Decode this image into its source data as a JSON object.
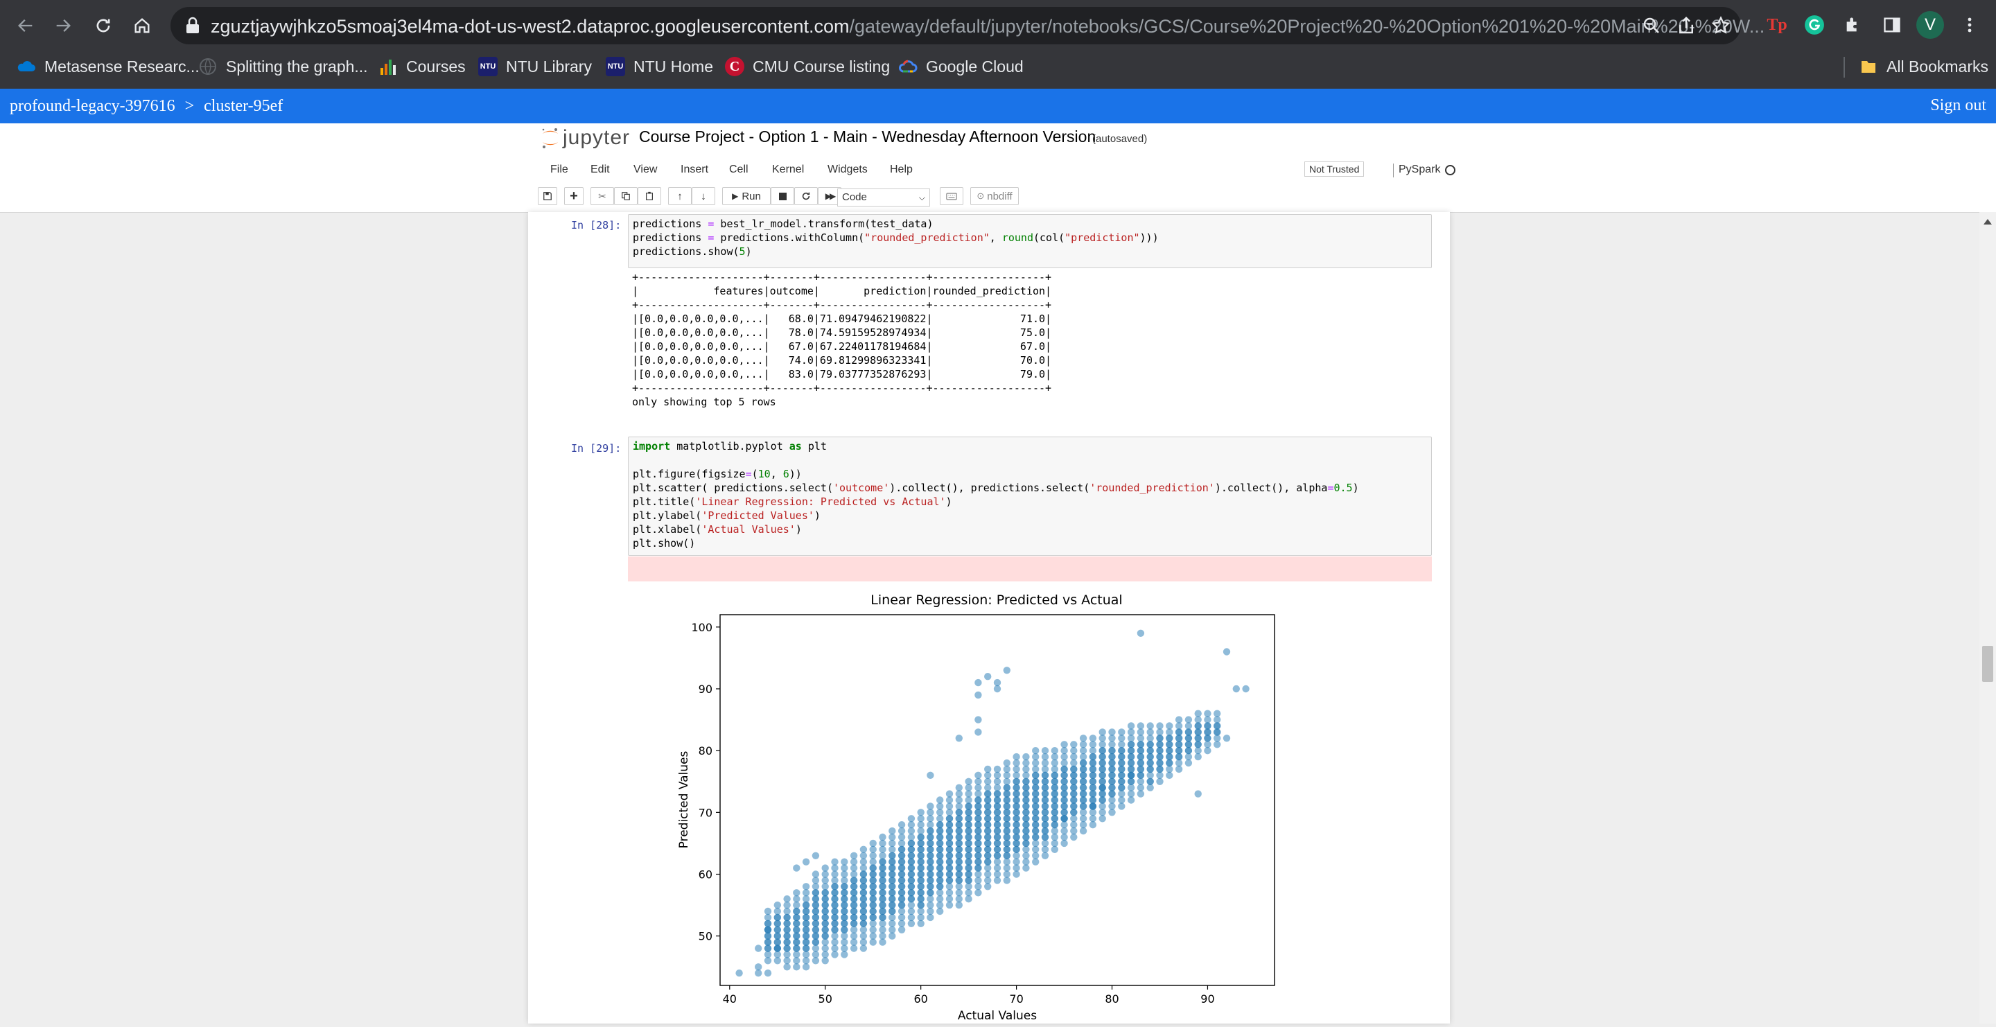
{
  "browser": {
    "url_host": "zguztjaywjhkzo5smoaj3el4ma-dot-us-west2.dataproc.googleusercontent.com",
    "url_path": "/gateway/default/jupyter/notebooks/GCS/Course%20Project%20-%20Option%201%20-%20Main%20-%20W...",
    "profile_initial": "V",
    "bookmarks": [
      {
        "label": "Metasense Researc...",
        "icon": "onedrive-cloud-icon",
        "color": "#0078d4"
      },
      {
        "label": "Splitting the graph...",
        "icon": "globe-icon",
        "color": "#5f6368"
      },
      {
        "label": "Courses",
        "icon": "bar-chart-icon",
        "color": "#f9ab00"
      },
      {
        "label": "NTU Library",
        "icon": "ntu-logo-icon",
        "color": "#1b1f6b"
      },
      {
        "label": "NTU Home",
        "icon": "ntu-logo-icon",
        "color": "#1b1f6b"
      },
      {
        "label": "CMU Course listing",
        "icon": "cmu-logo-icon",
        "color": "#c41230"
      },
      {
        "label": "Google Cloud",
        "icon": "google-cloud-icon",
        "color": "#4285f4"
      }
    ],
    "all_bookmarks": "All Bookmarks"
  },
  "dataproc": {
    "project": "profound-legacy-397616",
    "separator": ">",
    "cluster": "cluster-95ef",
    "sign_out": "Sign out"
  },
  "jupyter": {
    "logo_text": "jupyter",
    "notebook_title": "Course Project - Option 1 - Main - Wednesday Afternoon Version",
    "autosave_status": "(autosaved)",
    "menu": [
      "File",
      "Edit",
      "View",
      "Insert",
      "Cell",
      "Kernel",
      "Widgets",
      "Help"
    ],
    "trust_status": "Not Trusted",
    "kernel": "PySpark",
    "toolbar": {
      "run_label": "Run",
      "cell_type": "Code",
      "nbdiff_label": "nbdiff"
    }
  },
  "cells": [
    {
      "prompt": "In [28]:",
      "code": [
        "predictions = best_lr_model.transform(test_data)",
        "predictions = predictions.withColumn(\"rounded_prediction\", round(col(\"prediction\")))",
        "predictions.show(5)"
      ],
      "output": [
        "+--------------------+-------+-----------------+------------------+",
        "|            features|outcome|       prediction|rounded_prediction|",
        "+--------------------+-------+-----------------+------------------+",
        "|[0.0,0.0,0.0,0.0,...|   68.0|71.09479462190822|              71.0|",
        "|[0.0,0.0,0.0,0.0,...|   78.0|74.59159528974934|              75.0|",
        "|[0.0,0.0,0.0,0.0,...|   67.0|67.22401178194684|              67.0|",
        "|[0.0,0.0,0.0,0.0,...|   74.0|69.81299896323341|              70.0|",
        "|[0.0,0.0,0.0,0.0,...|   83.0|79.03777352876293|              79.0|",
        "+--------------------+-------+-----------------+------------------+",
        "only showing top 5 rows"
      ]
    },
    {
      "prompt": "In [29]:",
      "code": [
        "import matplotlib.pyplot as plt",
        "",
        "plt.figure(figsize=(10, 6))",
        "plt.scatter( predictions.select('outcome').collect(), predictions.select('rounded_prediction').collect(), alpha=0.5)",
        "plt.title('Linear Regression: Predicted vs Actual')",
        "plt.ylabel('Predicted Values')",
        "plt.xlabel('Actual Values')",
        "plt.show()"
      ]
    }
  ],
  "chart_data": {
    "type": "scatter",
    "title": "Linear Regression: Predicted vs Actual",
    "xlabel": "Actual Values",
    "ylabel": "Predicted Values",
    "xlim": [
      39,
      97
    ],
    "ylim": [
      42,
      102
    ],
    "xticks": [
      40,
      50,
      60,
      70,
      80,
      90
    ],
    "yticks": [
      50,
      60,
      70,
      80,
      90,
      100
    ],
    "color": "#1f77b4",
    "alpha": 0.5,
    "grid": false,
    "bands": [
      {
        "x": 44,
        "ymin": 46,
        "ymax": 54
      },
      {
        "x": 45,
        "ymin": 46,
        "ymax": 55
      },
      {
        "x": 46,
        "ymin": 45,
        "ymax": 56
      },
      {
        "x": 47,
        "ymin": 45,
        "ymax": 57
      },
      {
        "x": 48,
        "ymin": 45,
        "ymax": 58
      },
      {
        "x": 49,
        "ymin": 46,
        "ymax": 60
      },
      {
        "x": 50,
        "ymin": 46,
        "ymax": 61
      },
      {
        "x": 51,
        "ymin": 47,
        "ymax": 62
      },
      {
        "x": 52,
        "ymin": 47,
        "ymax": 62
      },
      {
        "x": 53,
        "ymin": 48,
        "ymax": 63
      },
      {
        "x": 54,
        "ymin": 48,
        "ymax": 64
      },
      {
        "x": 55,
        "ymin": 49,
        "ymax": 65
      },
      {
        "x": 56,
        "ymin": 49,
        "ymax": 66
      },
      {
        "x": 57,
        "ymin": 50,
        "ymax": 67
      },
      {
        "x": 58,
        "ymin": 51,
        "ymax": 68
      },
      {
        "x": 59,
        "ymin": 52,
        "ymax": 69
      },
      {
        "x": 60,
        "ymin": 52,
        "ymax": 70
      },
      {
        "x": 61,
        "ymin": 53,
        "ymax": 71
      },
      {
        "x": 62,
        "ymin": 54,
        "ymax": 72
      },
      {
        "x": 63,
        "ymin": 55,
        "ymax": 73
      },
      {
        "x": 64,
        "ymin": 55,
        "ymax": 74
      },
      {
        "x": 65,
        "ymin": 56,
        "ymax": 75
      },
      {
        "x": 66,
        "ymin": 57,
        "ymax": 76
      },
      {
        "x": 67,
        "ymin": 58,
        "ymax": 77
      },
      {
        "x": 68,
        "ymin": 59,
        "ymax": 77
      },
      {
        "x": 69,
        "ymin": 59,
        "ymax": 78
      },
      {
        "x": 70,
        "ymin": 60,
        "ymax": 79
      },
      {
        "x": 71,
        "ymin": 61,
        "ymax": 79
      },
      {
        "x": 72,
        "ymin": 62,
        "ymax": 80
      },
      {
        "x": 73,
        "ymin": 63,
        "ymax": 80
      },
      {
        "x": 74,
        "ymin": 64,
        "ymax": 80
      },
      {
        "x": 75,
        "ymin": 65,
        "ymax": 81
      },
      {
        "x": 76,
        "ymin": 66,
        "ymax": 81
      },
      {
        "x": 77,
        "ymin": 67,
        "ymax": 82
      },
      {
        "x": 78,
        "ymin": 68,
        "ymax": 82
      },
      {
        "x": 79,
        "ymin": 69,
        "ymax": 83
      },
      {
        "x": 80,
        "ymin": 70,
        "ymax": 83
      },
      {
        "x": 81,
        "ymin": 71,
        "ymax": 83
      },
      {
        "x": 82,
        "ymin": 72,
        "ymax": 84
      },
      {
        "x": 83,
        "ymin": 73,
        "ymax": 84
      },
      {
        "x": 84,
        "ymin": 74,
        "ymax": 84
      },
      {
        "x": 85,
        "ymin": 75,
        "ymax": 84
      },
      {
        "x": 86,
        "ymin": 76,
        "ymax": 84
      },
      {
        "x": 87,
        "ymin": 77,
        "ymax": 85
      },
      {
        "x": 88,
        "ymin": 78,
        "ymax": 85
      },
      {
        "x": 89,
        "ymin": 79,
        "ymax": 86
      },
      {
        "x": 90,
        "ymin": 80,
        "ymax": 86
      },
      {
        "x": 91,
        "ymin": 81,
        "ymax": 86
      }
    ],
    "outliers": [
      [
        41,
        44
      ],
      [
        43,
        44
      ],
      [
        43,
        45
      ],
      [
        44,
        44
      ],
      [
        43,
        48
      ],
      [
        44,
        51
      ],
      [
        45,
        48
      ],
      [
        47,
        61
      ],
      [
        48,
        62
      ],
      [
        49,
        63
      ],
      [
        61,
        76
      ],
      [
        64,
        82
      ],
      [
        66,
        83
      ],
      [
        66,
        85
      ],
      [
        66,
        89
      ],
      [
        66,
        91
      ],
      [
        67,
        92
      ],
      [
        68,
        91
      ],
      [
        68,
        90
      ],
      [
        69,
        93
      ],
      [
        83,
        99
      ],
      [
        92,
        96
      ],
      [
        93,
        90
      ],
      [
        94,
        90
      ],
      [
        92,
        82
      ],
      [
        89,
        73
      ],
      [
        84,
        75
      ],
      [
        82,
        76
      ],
      [
        79,
        74
      ],
      [
        78,
        71
      ],
      [
        75,
        69
      ],
      [
        73,
        66
      ],
      [
        65,
        59
      ],
      [
        60,
        55
      ]
    ]
  }
}
